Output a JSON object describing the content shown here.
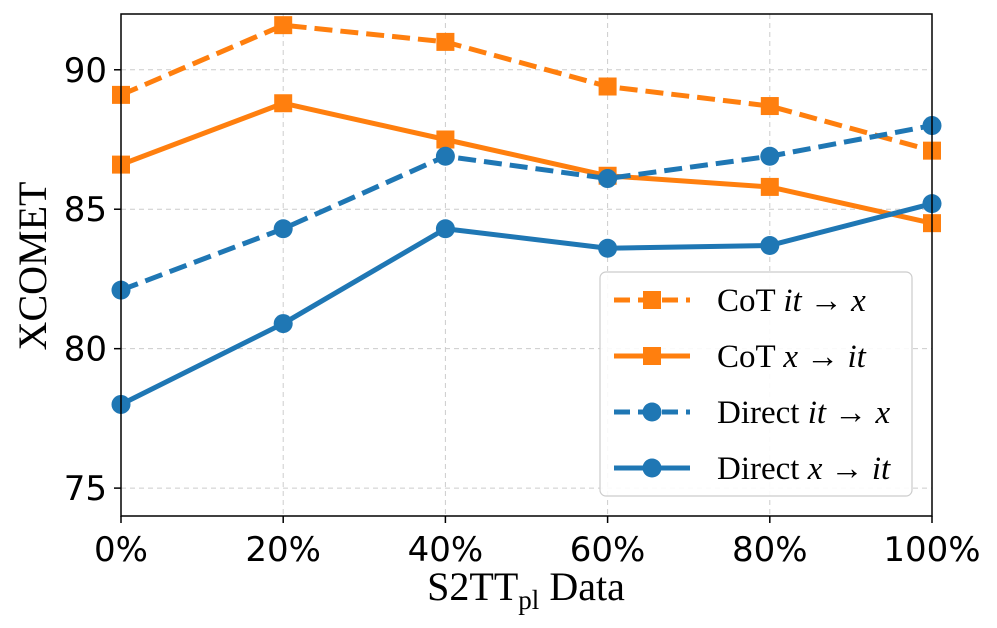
{
  "chart_data": {
    "type": "line",
    "x": [
      0,
      20,
      40,
      60,
      80,
      100
    ],
    "x_tick_labels": [
      "0%",
      "20%",
      "40%",
      "60%",
      "80%",
      "100%"
    ],
    "xlim": [
      0,
      100
    ],
    "ylim": [
      74.0,
      92.0
    ],
    "y_ticks": [
      75,
      80,
      85,
      90
    ],
    "y_tick_labels": [
      "75",
      "80",
      "85",
      "90"
    ],
    "ylabel": "XCOMET",
    "xlabel": {
      "main": "S2TT",
      "sub": "pl",
      "rest": " Data"
    },
    "grid": true,
    "legend_position": "lower-right",
    "series": [
      {
        "name": "CoT it→x",
        "label_prefix": "CoT ",
        "label_src": "it",
        "arrow": "→",
        "label_tgt": "x",
        "color": "#ff7f0e",
        "style": "dashed",
        "marker": "square",
        "values": [
          89.1,
          91.6,
          91.0,
          89.4,
          88.7,
          87.1
        ]
      },
      {
        "name": "CoT x→it",
        "label_prefix": "CoT ",
        "label_src": "x",
        "arrow": "→",
        "label_tgt": "it",
        "color": "#ff7f0e",
        "style": "solid",
        "marker": "square",
        "values": [
          86.6,
          88.8,
          87.5,
          86.2,
          85.8,
          84.5
        ]
      },
      {
        "name": "Direct it→x",
        "label_prefix": "Direct ",
        "label_src": "it",
        "arrow": "→",
        "label_tgt": "x",
        "color": "#1f77b4",
        "style": "dashed",
        "marker": "circle",
        "values": [
          82.1,
          84.3,
          86.9,
          86.1,
          86.9,
          88.0
        ]
      },
      {
        "name": "Direct x→it",
        "label_prefix": "Direct ",
        "label_src": "x",
        "arrow": "→",
        "label_tgt": "it",
        "color": "#1f77b4",
        "style": "solid",
        "marker": "circle",
        "values": [
          78.0,
          80.9,
          84.3,
          83.6,
          83.7,
          85.2
        ]
      }
    ]
  }
}
